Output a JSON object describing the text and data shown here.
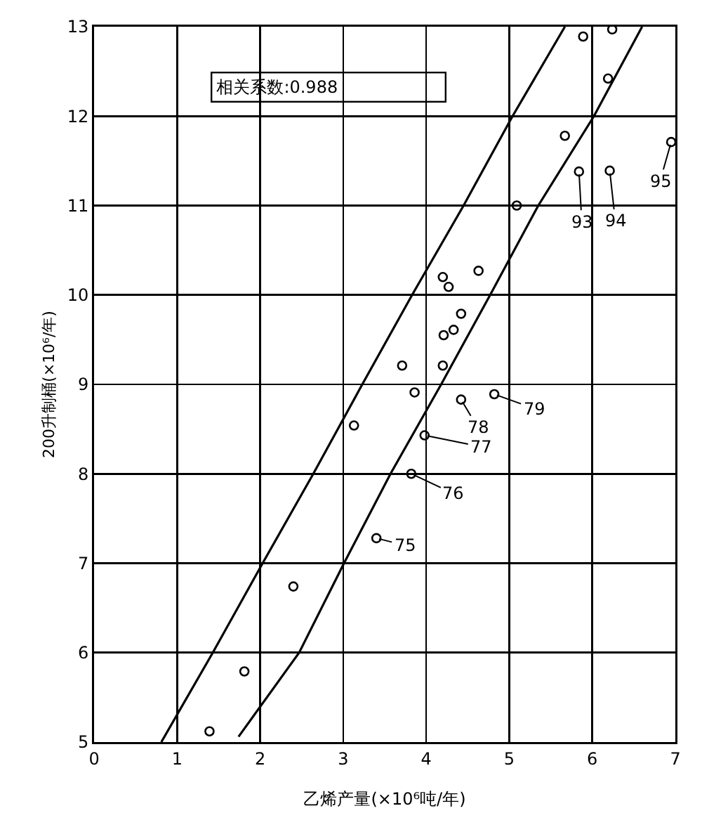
{
  "chart_data": {
    "type": "scatter",
    "xlabel": "乙烯产量(×10⁶吨/年)",
    "ylabel": "200升制桶(×10⁶/年)",
    "xlim": [
      0,
      7
    ],
    "ylim": [
      5,
      13
    ],
    "xticks": [
      0,
      1,
      2,
      3,
      4,
      5,
      6,
      7
    ],
    "yticks": [
      5,
      6,
      7,
      8,
      9,
      10,
      11,
      12,
      13
    ],
    "grid": true,
    "marker": "circle",
    "series": [
      {
        "color": "#000000",
        "x": [
          1.39,
          1.81,
          2.4,
          3.13,
          3.4,
          3.82,
          3.98,
          3.86,
          4.42,
          4.82,
          3.71,
          4.2,
          4.21,
          4.33,
          4.42,
          4.2,
          4.27,
          4.63,
          5.09,
          5.67,
          5.84,
          6.21,
          6.95,
          6.19,
          5.89,
          6.24
        ],
        "values": [
          5.12,
          5.79,
          6.74,
          8.54,
          7.28,
          8.0,
          8.43,
          8.91,
          8.83,
          8.89,
          9.21,
          9.21,
          9.55,
          9.61,
          9.79,
          10.2,
          10.09,
          10.27,
          11.0,
          11.78,
          11.38,
          11.39,
          11.71,
          12.42,
          12.89,
          12.97
        ]
      },
      {
        "type": "line",
        "color": "#000000",
        "marker": "none",
        "x": [
          0.81,
          1.43,
          2.03,
          2.64,
          3.23,
          3.83,
          4.45,
          5.04,
          5.67
        ],
        "values": [
          5,
          6,
          7,
          8,
          9,
          10,
          11,
          12,
          13
        ]
      },
      {
        "type": "line",
        "color": "#000000",
        "marker": "none",
        "x": [
          1.74,
          2.47,
          3.01,
          3.57,
          4.18,
          4.77,
          5.35,
          6.02,
          6.6
        ],
        "values": [
          5.06,
          6,
          7,
          8,
          9,
          10,
          11,
          12,
          13
        ]
      }
    ],
    "annotations": [
      "相关系数:0.988",
      {
        "text": "75",
        "x": 3.4,
        "y": 7.28
      },
      {
        "text": "76",
        "x": 3.82,
        "y": 8.0
      },
      {
        "text": "77",
        "x": 3.98,
        "y": 8.43
      },
      {
        "text": "78",
        "x": 4.42,
        "y": 8.83
      },
      {
        "text": "79",
        "x": 4.82,
        "y": 8.89
      },
      {
        "text": "93",
        "x": 5.84,
        "y": 11.38
      },
      {
        "text": "94",
        "x": 6.21,
        "y": 11.39
      },
      {
        "text": "95",
        "x": 6.95,
        "y": 11.71
      }
    ]
  }
}
